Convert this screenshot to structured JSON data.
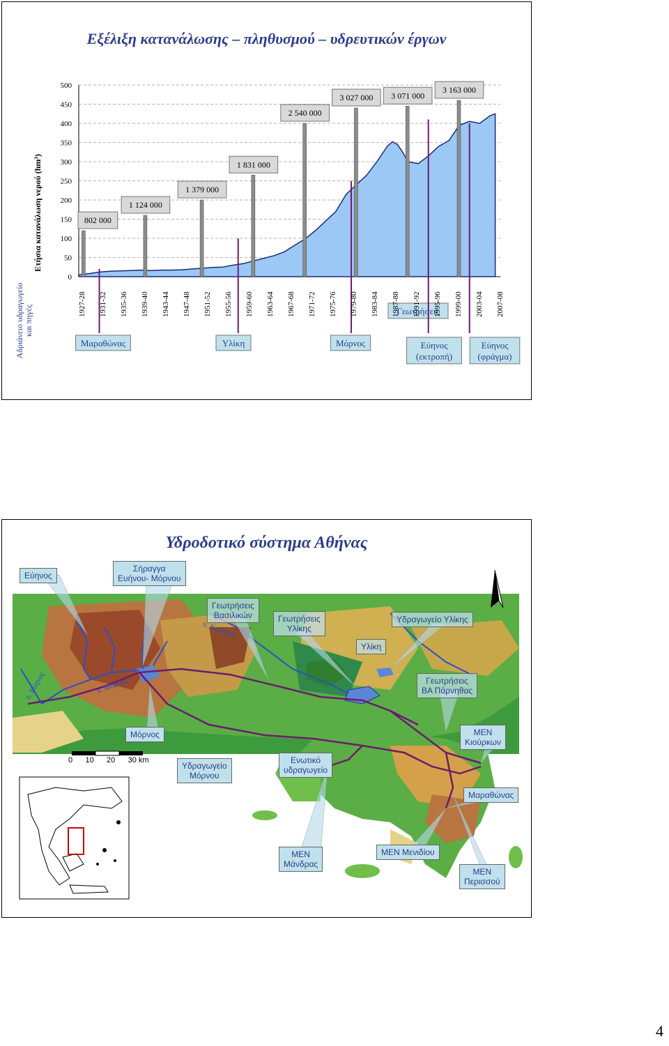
{
  "page_number": "4",
  "slide1": {
    "title": "Εξέλιξη κατανάλωσης – πληθυσμού – υδρευτικών έργων",
    "side_label": "Αδριάνειο υδραγωγείο και πηγές",
    "chart_data": {
      "type": "area",
      "ylabel": "Ετήσια κατανάλωση νερού (hm³)",
      "ylim": [
        0,
        500
      ],
      "yticks": [
        0,
        50,
        100,
        150,
        200,
        250,
        300,
        350,
        400,
        450,
        500
      ],
      "x_ticks": [
        "1927-28",
        "1931-32",
        "1935-36",
        "1939-40",
        "1943-44",
        "1947-48",
        "1951-52",
        "1955-56",
        "1959-60",
        "1963-64",
        "1967-68",
        "1971-72",
        "1975-76",
        "1979-80",
        "1983-84",
        "1987-88",
        "1991-92",
        "1995-96",
        "1999-00",
        "2003-04",
        "2007-08"
      ],
      "x": [
        1927,
        1929,
        1931,
        1933,
        1935,
        1937,
        1939,
        1941,
        1943,
        1945,
        1947,
        1949,
        1951,
        1953,
        1955,
        1957,
        1959,
        1961,
        1963,
        1965,
        1967,
        1969,
        1971,
        1973,
        1975,
        1977,
        1979,
        1981,
        1983,
        1985,
        1987,
        1988,
        1989,
        1990,
        1991,
        1993,
        1995,
        1997,
        1999,
        2001,
        2002,
        2003,
        2005,
        2007,
        2008
      ],
      "series": [
        {
          "values": [
            5,
            8,
            12,
            14,
            15,
            16,
            17,
            16,
            17,
            17,
            18,
            20,
            22,
            24,
            25,
            30,
            34,
            41,
            48,
            55,
            65,
            82,
            98,
            120,
            145,
            170,
            215,
            240,
            265,
            300,
            340,
            352,
            345,
            325,
            300,
            295,
            315,
            340,
            355,
            395,
            400,
            405,
            400,
            420,
            425
          ]
        }
      ],
      "population_bars": [
        {
          "year": 1928,
          "label": "802 000",
          "value": 120
        },
        {
          "year": 1940,
          "label": "1 124 000",
          "value": 160
        },
        {
          "year": 1951,
          "label": "1 379 000",
          "value": 200
        },
        {
          "year": 1961,
          "label": "1 831 000",
          "value": 265
        },
        {
          "year": 1971,
          "label": "2 540 000",
          "value": 400
        },
        {
          "year": 1981,
          "label": "3 027 000",
          "value": 440
        },
        {
          "year": 1991,
          "label": "3 071 000",
          "value": 445
        },
        {
          "year": 2001,
          "label": "3 163 000",
          "value": 460
        }
      ],
      "works": [
        {
          "year": 1931,
          "label": "Μαραθώνας"
        },
        {
          "year": 1958,
          "label": "Υλίκη"
        },
        {
          "year": 1980,
          "label": "Μόρνος"
        },
        {
          "year": 1994,
          "label": "Γεωτρήσεις"
        },
        {
          "year": 1995,
          "label": "Εύηνος (εκτροπή)"
        },
        {
          "year": 2003,
          "label": "Εύηνος (φράγμα)"
        }
      ]
    }
  },
  "slide2": {
    "title": "Υδροδοτικό σύστημα Αθήνας",
    "callouts": {
      "evinos": "Εύηνος",
      "tunnel_l1": "Σήραγγα",
      "tunnel_l2": "Ευήνου- Μόρνου",
      "geo_vas_l1": "Γεωτρήσεις",
      "geo_vas_l2": "Βασιλικών",
      "geo_yliki_l1": "Γεωτρήσεις",
      "geo_yliki_l2": "Υλίκης",
      "aqueduct_yliki": "Υδραγωγείο Υλίκης",
      "yliki": "Υλίκη",
      "geo_parnitha_l1": "Γεωτρήσεις",
      "geo_parnitha_l2": "ΒΑ Πάρνηθας",
      "mornos": "Μόρνος",
      "men_kiourka_l1": "ΜΕΝ",
      "men_kiourka_l2": "Κιούρκων",
      "aqueduct_mornos_l1": "Υδραγωγείο",
      "aqueduct_mornos_l2": "Μόρνου",
      "unified_l1": "Ενωτικό",
      "unified_l2": "υδραγωγείο",
      "marathonas": "Μαραθώνας",
      "men_mandra_l1": "ΜΕΝ",
      "men_mandra_l2": "Μάνδρας",
      "men_menidi": "ΜΕΝ Μενιδίου",
      "men_perissos_l1": "ΜΕΝ",
      "men_perissos_l2": "Περισσού"
    },
    "map_labels": {
      "kifissos": "π. Κηφισός",
      "mornos_river": "π. Μόρνος",
      "evinos_river": "π. Εύηνος"
    },
    "scale_text": "0      10      20      30 km"
  }
}
